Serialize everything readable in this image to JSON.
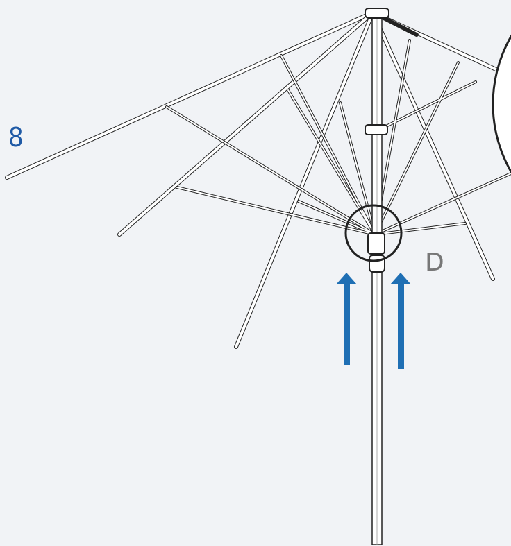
{
  "step_label": "8",
  "callout_label": "D"
}
